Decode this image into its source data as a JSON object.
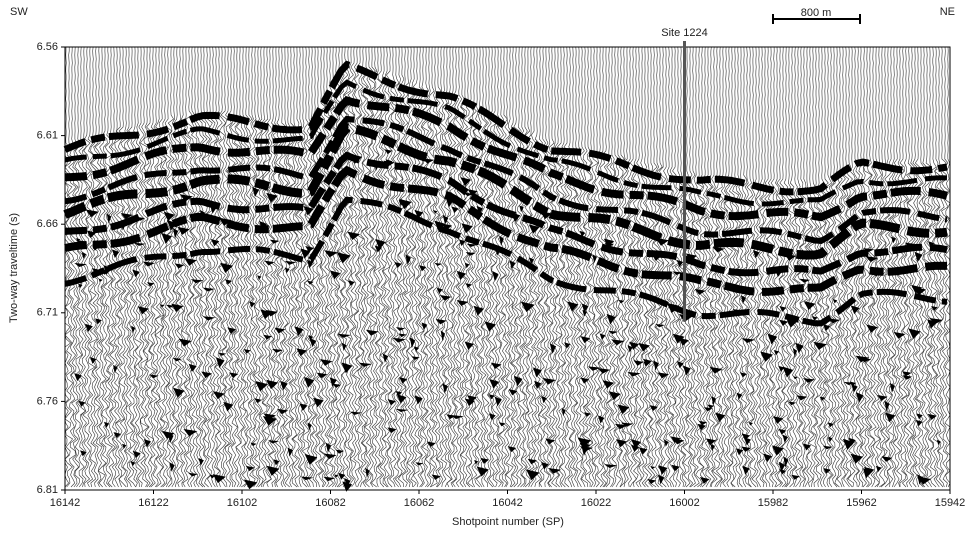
{
  "chart_data": {
    "type": "seismic",
    "xlabel": "Shotpoint number (SP)",
    "ylabel": "Two-way traveltime (s)",
    "xlim": [
      16142,
      15942
    ],
    "xticks": [
      16142,
      16122,
      16102,
      16082,
      16062,
      16042,
      16022,
      16002,
      15982,
      15962,
      15942
    ],
    "ylim": [
      6.56,
      6.81
    ],
    "y_inverted": true,
    "yticks": [
      6.56,
      6.61,
      6.66,
      6.71,
      6.76,
      6.81
    ],
    "direction_left": "SW",
    "direction_right": "NE",
    "scale_bar": "800 m",
    "site": {
      "text": "Site 1224",
      "x": 16002,
      "y": 6.715
    }
  }
}
